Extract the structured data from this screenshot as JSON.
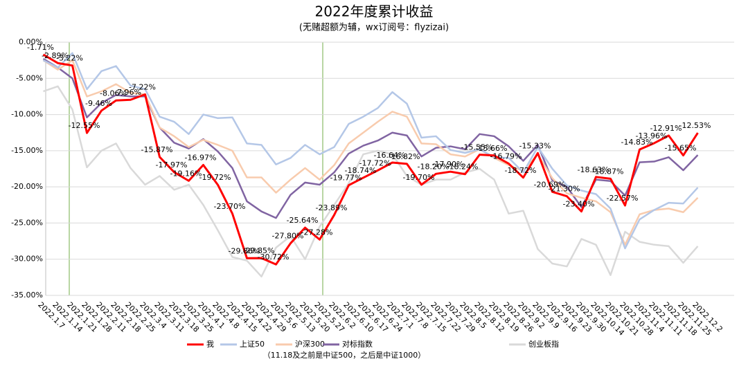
{
  "chart_data": {
    "type": "line",
    "title": "2022年度累计收益",
    "subtitle": "(无赌超额为辅，wx订阅号：flyzizai)",
    "categories": [
      "2022.1.7",
      "2022.1.14",
      "2022.1.21",
      "2022.1.28",
      "2022.2.11",
      "2022.2.18",
      "2022.2.25",
      "2022.3.4",
      "2022.3.11",
      "2022.3.18",
      "2022.3.25",
      "2022.4.1",
      "2022.4.8",
      "2022.4.15",
      "2022.4.22",
      "2022.4.29",
      "2022.5.6",
      "2022.5.13",
      "2022.5.20",
      "2022.5.27",
      "2022.6.2",
      "2022.6.10",
      "2022.6.17",
      "2022.6.24",
      "2022.7.1",
      "2022.7.8",
      "2022.7.15",
      "2022.7.22",
      "2022.7.29",
      "2022.8.5",
      "2022.8.12",
      "2022.8.19",
      "2022.8.26",
      "2022.9.2",
      "2022.9.9",
      "2022.9.16",
      "2022.9.23",
      "2022.9.30",
      "2022.10.14",
      "2022.10.21",
      "2022.10.28",
      "2022.11.4",
      "2022.11.11",
      "2022.11.18",
      "2022.11.25",
      "2022.12.2"
    ],
    "series": [
      {
        "name": "我",
        "color": "#ff0000",
        "values": [
          -1.71,
          -2.89,
          -3.22,
          -12.55,
          -9.46,
          -8.06,
          -7.96,
          -7.22,
          -15.87,
          -17.97,
          -19.16,
          -16.97,
          -19.72,
          -23.7,
          -29.86,
          -29.85,
          -30.72,
          -27.8,
          -25.64,
          -27.28,
          -23.89,
          -19.77,
          -18.74,
          -17.72,
          -16.64,
          -16.82,
          -19.7,
          -18.2,
          -17.9,
          -18.24,
          -15.55,
          -15.66,
          -16.79,
          -18.72,
          -15.33,
          -20.69,
          -21.3,
          -23.4,
          -18.63,
          -18.87,
          -22.57,
          -14.83,
          -13.96,
          -12.91,
          -15.65,
          -12.53
        ],
        "value_labels": [
          "-1.71%",
          "-2.89%",
          "-3.22%",
          "-12.55%",
          "-9.46%",
          "-8.06%",
          "-7.96%",
          "-7.22%",
          "-15.87%",
          "-17.97%",
          "-19.16%",
          "-16.97%",
          "-19.72%",
          "-23.70%",
          "-29.86%",
          "-29.85%",
          "-30.72%",
          "-27.80%",
          "-25.64%",
          "-27.28%",
          "-23.89%",
          "-19.77%",
          "-18.74%",
          "-17.72%",
          "-16.64%",
          "-16.82%",
          "-19.70%",
          "-18.20%",
          "-17.90%",
          "-18.24%",
          "-15.55%",
          "-15.66%",
          "-16.79%",
          "-18.72%",
          "-15.33%",
          "-20.69%",
          "-21.30%",
          "-23.40%",
          "-18.63%",
          "-18.87%",
          "-22.57%",
          "-14.83%",
          "-13.96%",
          "-12.91%",
          "-15.65%",
          "-12.53%"
        ]
      },
      {
        "name": "上证50",
        "color": "#b4c7e7",
        "values": [
          -2.5,
          -3.5,
          -1.5,
          -6.5,
          -4,
          -3.3,
          -6,
          -6.5,
          -10.3,
          -11,
          -12.7,
          -10,
          -10.5,
          -10.4,
          -14,
          -14.2,
          -16.9,
          -16,
          -14.2,
          -15.5,
          -14.5,
          -11.3,
          -10.3,
          -9.1,
          -6.9,
          -8.5,
          -13.2,
          -13,
          -14.9,
          -15.3,
          -14.8,
          -15.9,
          -16,
          -18,
          -14.5,
          -17.5,
          -19.8,
          -20.5,
          -21,
          -23,
          -28.5,
          -24.5,
          -23.2,
          -22.2,
          -22.3,
          -20.1
        ]
      },
      {
        "name": "沪深300",
        "color": "#f8cbad",
        "values": [
          -2.5,
          -3.8,
          -2.5,
          -7.5,
          -6.8,
          -5.8,
          -7,
          -7.2,
          -11.8,
          -13,
          -14.5,
          -13.5,
          -14.2,
          -15,
          -18.7,
          -18.7,
          -20.8,
          -19,
          -17.4,
          -19,
          -17,
          -14,
          -12.5,
          -11,
          -9.6,
          -10.3,
          -14,
          -14.1,
          -15.5,
          -15.8,
          -14.8,
          -16,
          -17,
          -17.8,
          -15.5,
          -18.8,
          -20.9,
          -21.5,
          -22,
          -23.5,
          -28,
          -23.8,
          -23.2,
          -23,
          -23.5,
          -21.5
        ]
      },
      {
        "name": "对标指数",
        "color": "#8064a2",
        "values": [
          -2.3,
          -3.5,
          -5,
          -10.4,
          -8.4,
          -7.3,
          -7.5,
          -7.5,
          -11.8,
          -13.9,
          -14.7,
          -13.4,
          -15.1,
          -17.4,
          -22,
          -23.4,
          -24.3,
          -21.1,
          -19.4,
          -19.7,
          -18,
          -15.4,
          -14.3,
          -13.6,
          -12.5,
          -12.9,
          -15.8,
          -14.6,
          -14.4,
          -14.8,
          -12.7,
          -13,
          -14.4,
          -16.4,
          -14.2,
          -19.1,
          -20,
          -22.8,
          -19,
          -19.2,
          -21.2,
          -16.6,
          -16.5,
          -15.9,
          -17.7,
          -15.6
        ]
      },
      {
        "name": "创业板指",
        "color": "#d9d9d9",
        "values": [
          -6.8,
          -6.1,
          -9.3,
          -17.3,
          -15,
          -14,
          -17.4,
          -19.7,
          -18.5,
          -20.4,
          -19.7,
          -22.5,
          -26,
          -29.7,
          -30.2,
          -32.4,
          -28.4,
          -26.8,
          -30,
          -25.5,
          -22.5,
          -19.5,
          -15.5,
          -15,
          -15.5,
          -18.5,
          -19.7,
          -19,
          -19,
          -18,
          -17.5,
          -19,
          -23.7,
          -23.3,
          -28.6,
          -30.6,
          -31,
          -27.2,
          -28,
          -32.2,
          -26.2,
          -27.6,
          -28,
          -28.2,
          -30.5,
          -28.2
        ]
      }
    ],
    "legend_note": "（11.18及之前是中证500，之后是中证1000）",
    "ylim": [
      -35,
      0
    ],
    "yticks": [
      {
        "value": 0,
        "label": "0.00%"
      },
      {
        "value": -5,
        "label": "-5.00%"
      },
      {
        "value": -10,
        "label": "-10.00%"
      },
      {
        "value": -15,
        "label": "-15.00%"
      },
      {
        "value": -20,
        "label": "-20.00%"
      },
      {
        "value": -25,
        "label": "-25.00%"
      },
      {
        "value": -30,
        "label": "-30.00%"
      },
      {
        "value": -35,
        "label": "-35.00%"
      }
    ],
    "grid": true,
    "legend": "bottom"
  }
}
